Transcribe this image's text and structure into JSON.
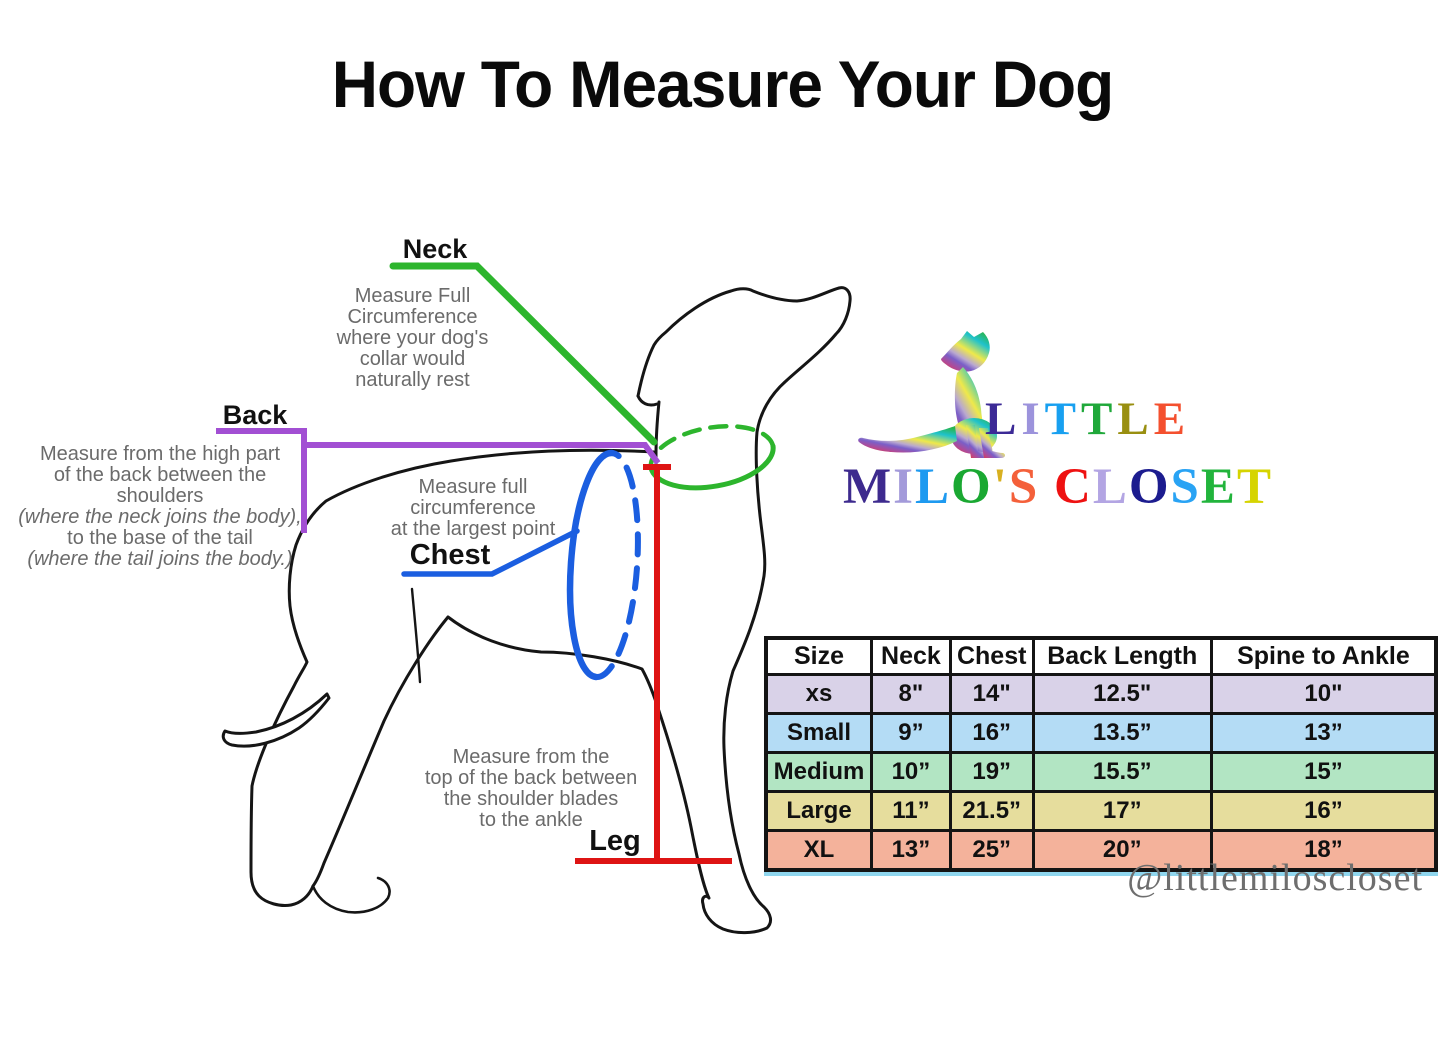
{
  "title": "How To Measure Your Dog",
  "annotations": {
    "neck": {
      "label": "Neck",
      "lines": [
        {
          "text": "Measure Full"
        },
        {
          "text": "Circumference"
        },
        {
          "text": "where your dog's"
        },
        {
          "text": "collar would"
        },
        {
          "text": "naturally rest"
        }
      ]
    },
    "back": {
      "label": "Back",
      "lines": [
        {
          "text": "Measure from the high part"
        },
        {
          "text": "of the back between the"
        },
        {
          "text": "shoulders"
        },
        {
          "text": "(where the neck joins the body),",
          "italic": true
        },
        {
          "text": "to the base of the tail"
        },
        {
          "text": "(where the tail joins the body.)",
          "italic": true
        }
      ]
    },
    "chest": {
      "label": "Chest",
      "lines": [
        {
          "text": "Measure full"
        },
        {
          "text": "circumference"
        },
        {
          "text": "at the largest point"
        }
      ]
    },
    "leg": {
      "label": "Leg",
      "lines": [
        {
          "text": "Measure from the"
        },
        {
          "text": "top of the back between"
        },
        {
          "text": "the shoulder blades"
        },
        {
          "text": "to the ankle"
        }
      ]
    }
  },
  "logo": {
    "line1": [
      {
        "ch": "L",
        "color": "#3c2a96"
      },
      {
        "ch": "I",
        "color": "#9c93dc"
      },
      {
        "ch": "T",
        "color": "#18a0f0"
      },
      {
        "ch": "T",
        "color": "#1fa83a"
      },
      {
        "ch": "L",
        "color": "#998f10"
      },
      {
        "ch": "E",
        "color": "#f4502f"
      }
    ],
    "line2": [
      {
        "ch": "M",
        "color": "#3d2a8e"
      },
      {
        "ch": "I",
        "color": "#a39ada"
      },
      {
        "ch": "L",
        "color": "#1e9af0"
      },
      {
        "ch": "O",
        "color": "#1aa832"
      },
      {
        "ch": "'",
        "color": "#d8b020"
      },
      {
        "ch": "S",
        "color": "#f4603a"
      },
      {
        "ch": " ",
        "color": "#000000"
      },
      {
        "ch": "C",
        "color": "#ee1111"
      },
      {
        "ch": "L",
        "color": "#b3a5e3"
      },
      {
        "ch": "O",
        "color": "#1c1c8f"
      },
      {
        "ch": "S",
        "color": "#29a3f4"
      },
      {
        "ch": "E",
        "color": "#22b43c"
      },
      {
        "ch": "T",
        "color": "#d6d400"
      }
    ]
  },
  "size_chart": {
    "headers": [
      "Size",
      "Neck",
      "Chest",
      "Back Length",
      "Spine to Ankle"
    ],
    "col_widths": [
      "15.6%",
      "11.6%",
      "12.2%",
      "26.8%",
      "33.8%"
    ],
    "rows": [
      {
        "size": "xs",
        "color": "#d9d2e8",
        "values": [
          "8\"",
          "14\"",
          "12.5\"",
          "10\""
        ]
      },
      {
        "size": "Small",
        "color": "#b4dcf5",
        "values": [
          "9”",
          "16”",
          "13.5”",
          "13”"
        ]
      },
      {
        "size": "Medium",
        "color": "#b2e5c3",
        "values": [
          "10”",
          "19”",
          "15.5”",
          "15”"
        ]
      },
      {
        "size": "Large",
        "color": "#e6dd9d",
        "values": [
          "11”",
          "21.5”",
          "17”",
          "16”"
        ]
      },
      {
        "size": "XL",
        "color": "#f4b29b",
        "values": [
          "13”",
          "25”",
          "20”",
          "18”"
        ]
      }
    ]
  },
  "handle": "@littlemiloscloset",
  "colors": {
    "neck_line": "#2db52d",
    "back_line": "#a24fd3",
    "chest_line": "#1b5ee0",
    "leg_line": "#de1414",
    "outline": "#151515",
    "text_gray": "#6b6b6b"
  }
}
